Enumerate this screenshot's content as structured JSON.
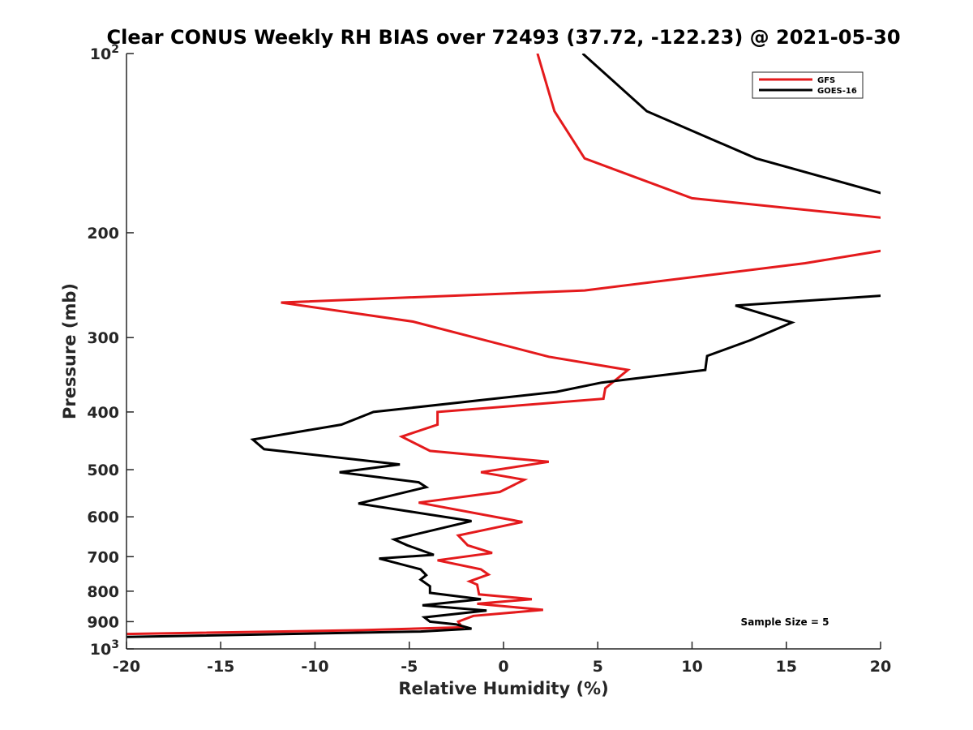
{
  "chart_data": {
    "type": "line",
    "title": "Clear CONUS Weekly RH BIAS over 72493 (37.72, -122.23) @ 2021-05-30",
    "xlabel": "Relative Humidity (%)",
    "ylabel": "Pressure (mb)",
    "xlim": [
      -20,
      20
    ],
    "ylim": [
      1000,
      100
    ],
    "yscale": "log",
    "y_reversed": true,
    "x_ticks": [
      "-20",
      "-15",
      "-10",
      "-5",
      "0",
      "5",
      "10",
      "15",
      "20"
    ],
    "y_ticks": [
      {
        "value": 100,
        "base": "10",
        "exp": "2"
      },
      {
        "value": 200,
        "text": "200"
      },
      {
        "value": 300,
        "text": "300"
      },
      {
        "value": 400,
        "text": "400"
      },
      {
        "value": 500,
        "text": "500"
      },
      {
        "value": 600,
        "text": "600"
      },
      {
        "value": 700,
        "text": "700"
      },
      {
        "value": 800,
        "text": "800"
      },
      {
        "value": 900,
        "text": "900"
      },
      {
        "value": 1000,
        "base": "10",
        "exp": "3"
      }
    ],
    "grid": false,
    "legend_position": "top-right",
    "annotation": "Sample Size = 5",
    "series": [
      {
        "name": "GFS",
        "color": "#e41a1c",
        "points": [
          [
            1.8,
            100
          ],
          [
            2.7,
            125
          ],
          [
            4.3,
            150
          ],
          [
            10.0,
            175
          ],
          [
            21.0,
            190
          ],
          [
            21.0,
            212
          ],
          [
            16.0,
            225
          ],
          [
            4.3,
            250
          ],
          [
            -11.8,
            262
          ],
          [
            -4.8,
            282
          ],
          [
            2.4,
            323
          ],
          [
            6.6,
            340
          ],
          [
            5.4,
            365
          ],
          [
            5.3,
            380
          ],
          [
            -3.5,
            400
          ],
          [
            -3.5,
            420
          ],
          [
            -5.4,
            440
          ],
          [
            -3.9,
            465
          ],
          [
            2.4,
            485
          ],
          [
            -1.2,
            505
          ],
          [
            1.1,
            520
          ],
          [
            -0.2,
            545
          ],
          [
            -4.5,
            568
          ],
          [
            1.0,
            612
          ],
          [
            -2.4,
            645
          ],
          [
            -1.9,
            670
          ],
          [
            -0.6,
            690
          ],
          [
            -3.5,
            710
          ],
          [
            -1.2,
            735
          ],
          [
            -0.8,
            750
          ],
          [
            -1.8,
            770
          ],
          [
            -1.4,
            780
          ],
          [
            -1.3,
            810
          ],
          [
            1.5,
            825
          ],
          [
            -1.4,
            840
          ],
          [
            2.1,
            860
          ],
          [
            -1.6,
            880
          ],
          [
            -2.4,
            900
          ],
          [
            -2.2,
            920
          ],
          [
            -7.5,
            930
          ],
          [
            -21.0,
            945
          ]
        ]
      },
      {
        "name": "GOES-16",
        "color": "#000000",
        "points": [
          [
            4.2,
            100
          ],
          [
            7.6,
            125
          ],
          [
            13.4,
            150
          ],
          [
            21.0,
            175
          ],
          [
            21.0,
            254
          ],
          [
            12.3,
            265
          ],
          [
            15.3,
            283
          ],
          [
            13.1,
            303
          ],
          [
            10.8,
            322
          ],
          [
            10.7,
            340
          ],
          [
            5.2,
            357
          ],
          [
            2.8,
            370
          ],
          [
            -6.9,
            400
          ],
          [
            -8.6,
            420
          ],
          [
            -13.3,
            445
          ],
          [
            -12.7,
            462
          ],
          [
            -5.5,
            490
          ],
          [
            -8.7,
            505
          ],
          [
            -4.5,
            525
          ],
          [
            -4.1,
            535
          ],
          [
            -7.7,
            570
          ],
          [
            -1.7,
            610
          ],
          [
            -5.8,
            655
          ],
          [
            -5.1,
            670
          ],
          [
            -3.7,
            695
          ],
          [
            -6.6,
            705
          ],
          [
            -4.4,
            735
          ],
          [
            -4.1,
            752
          ],
          [
            -4.4,
            765
          ],
          [
            -3.9,
            785
          ],
          [
            -3.9,
            805
          ],
          [
            -1.2,
            825
          ],
          [
            -4.3,
            845
          ],
          [
            -0.9,
            862
          ],
          [
            -4.2,
            885
          ],
          [
            -3.9,
            900
          ],
          [
            -2.5,
            910
          ],
          [
            -1.7,
            925
          ],
          [
            -4.4,
            935
          ],
          [
            -20.0,
            955
          ]
        ]
      }
    ]
  }
}
